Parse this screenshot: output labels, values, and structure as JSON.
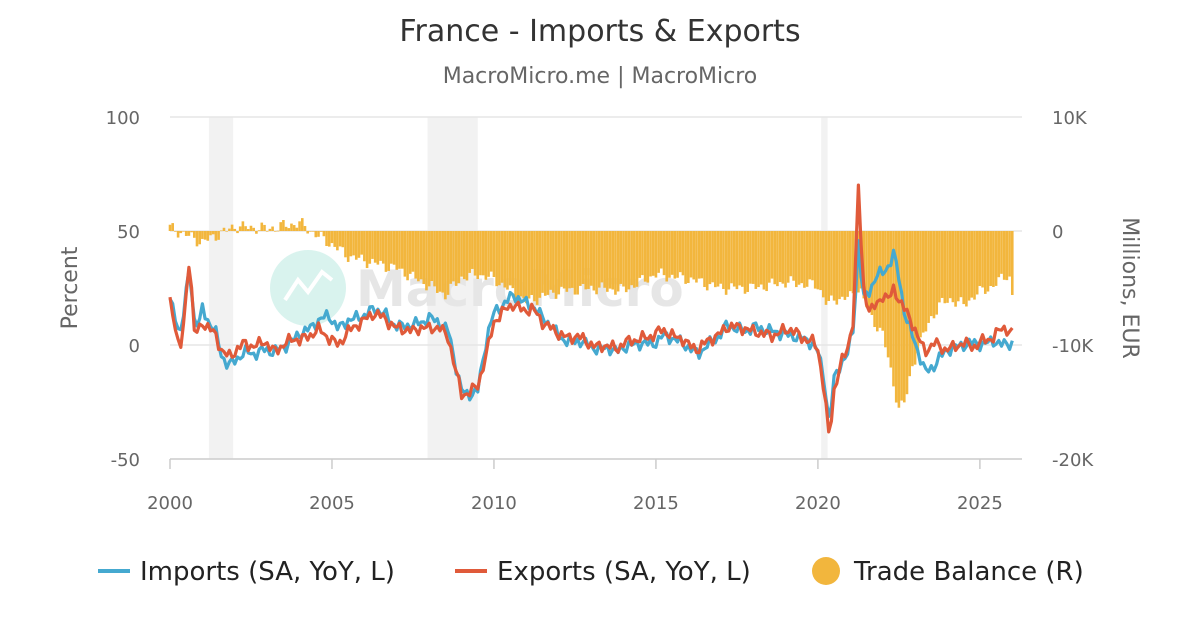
{
  "chart_data": {
    "type": "line",
    "title": "France - Imports & Exports",
    "subtitle": "MacroMicro.me | MacroMicro",
    "watermark": "MacroMicro",
    "y_left": {
      "label": "Percent",
      "min": -50,
      "max": 100,
      "ticks": [
        "100",
        "50",
        "0",
        "-50"
      ],
      "tick_values": [
        100,
        50,
        0,
        -50
      ]
    },
    "y_right": {
      "label": "Millions, EUR",
      "min": -20000,
      "max": 10000,
      "ticks": [
        "10K",
        "0",
        "-10K",
        "-20K"
      ],
      "tick_values": [
        10000,
        0,
        -10000,
        -20000
      ]
    },
    "x_axis": {
      "min": 2000,
      "max": 2026.3,
      "ticks": [
        "2000",
        "2005",
        "2010",
        "2015",
        "2020",
        "2025"
      ],
      "tick_values": [
        2000,
        2005,
        2010,
        2015,
        2020,
        2025
      ]
    },
    "recession_bands": [
      [
        2001.2,
        2001.95
      ],
      [
        2007.95,
        2009.5
      ],
      [
        2020.1,
        2020.3
      ]
    ],
    "grid": true,
    "legend_position": "bottom",
    "series": [
      {
        "name": "Imports (SA, YoY, L)",
        "axis": "left",
        "color": "#45a9d0",
        "points": [
          [
            2000.0,
            19
          ],
          [
            2000.15,
            14
          ],
          [
            2000.3,
            4
          ],
          [
            2000.45,
            16
          ],
          [
            2000.6,
            35
          ],
          [
            2000.75,
            11
          ],
          [
            2000.9,
            9
          ],
          [
            2001.0,
            16
          ],
          [
            2001.2,
            10
          ],
          [
            2001.4,
            6
          ],
          [
            2001.6,
            -5
          ],
          [
            2001.8,
            -9
          ],
          [
            2002.0,
            -7
          ],
          [
            2002.3,
            -3
          ],
          [
            2002.6,
            -4
          ],
          [
            2002.9,
            -2
          ],
          [
            2003.2,
            -3
          ],
          [
            2003.5,
            -1
          ],
          [
            2003.8,
            2
          ],
          [
            2004.0,
            5
          ],
          [
            2004.3,
            7
          ],
          [
            2004.6,
            11
          ],
          [
            2004.9,
            13
          ],
          [
            2005.2,
            7
          ],
          [
            2005.5,
            11
          ],
          [
            2005.8,
            12
          ],
          [
            2006.0,
            13
          ],
          [
            2006.3,
            16
          ],
          [
            2006.6,
            14
          ],
          [
            2006.9,
            9
          ],
          [
            2007.2,
            8
          ],
          [
            2007.5,
            9
          ],
          [
            2007.8,
            10
          ],
          [
            2008.0,
            12
          ],
          [
            2008.3,
            10
          ],
          [
            2008.6,
            6
          ],
          [
            2008.8,
            -8
          ],
          [
            2009.0,
            -20
          ],
          [
            2009.2,
            -22
          ],
          [
            2009.5,
            -20
          ],
          [
            2009.8,
            5
          ],
          [
            2010.0,
            14
          ],
          [
            2010.3,
            18
          ],
          [
            2010.6,
            22
          ],
          [
            2010.9,
            19
          ],
          [
            2011.2,
            17
          ],
          [
            2011.5,
            12
          ],
          [
            2011.8,
            8
          ],
          [
            2012.0,
            4
          ],
          [
            2012.3,
            1
          ],
          [
            2012.6,
            2
          ],
          [
            2012.9,
            0
          ],
          [
            2013.2,
            -2
          ],
          [
            2013.5,
            -1
          ],
          [
            2013.8,
            -3
          ],
          [
            2014.0,
            -1
          ],
          [
            2014.3,
            0
          ],
          [
            2014.6,
            1
          ],
          [
            2014.9,
            0
          ],
          [
            2015.2,
            4
          ],
          [
            2015.5,
            3
          ],
          [
            2015.8,
            1
          ],
          [
            2016.0,
            -1
          ],
          [
            2016.3,
            -4
          ],
          [
            2016.6,
            0
          ],
          [
            2016.9,
            3
          ],
          [
            2017.2,
            9
          ],
          [
            2017.5,
            7
          ],
          [
            2017.8,
            6
          ],
          [
            2018.0,
            8
          ],
          [
            2018.3,
            7
          ],
          [
            2018.6,
            6
          ],
          [
            2018.9,
            5
          ],
          [
            2019.2,
            4
          ],
          [
            2019.5,
            3
          ],
          [
            2019.8,
            1
          ],
          [
            2020.0,
            -3
          ],
          [
            2020.2,
            -15
          ],
          [
            2020.35,
            -35
          ],
          [
            2020.5,
            -15
          ],
          [
            2020.7,
            -8
          ],
          [
            2020.9,
            -5
          ],
          [
            2021.1,
            8
          ],
          [
            2021.25,
            45
          ],
          [
            2021.4,
            20
          ],
          [
            2021.6,
            24
          ],
          [
            2021.8,
            30
          ],
          [
            2022.0,
            32
          ],
          [
            2022.2,
            35
          ],
          [
            2022.35,
            40
          ],
          [
            2022.5,
            30
          ],
          [
            2022.7,
            12
          ],
          [
            2022.9,
            5
          ],
          [
            2023.1,
            -3
          ],
          [
            2023.3,
            -12
          ],
          [
            2023.6,
            -9
          ],
          [
            2023.9,
            -3
          ],
          [
            2024.2,
            -1
          ],
          [
            2024.5,
            0
          ],
          [
            2024.8,
            1
          ],
          [
            2025.1,
            0
          ],
          [
            2025.4,
            2
          ],
          [
            2025.7,
            0
          ],
          [
            2026.0,
            1
          ]
        ]
      },
      {
        "name": "Exports (SA, YoY, L)",
        "axis": "left",
        "color": "#e05a3a",
        "points": [
          [
            2000.0,
            20
          ],
          [
            2000.15,
            10
          ],
          [
            2000.3,
            -5
          ],
          [
            2000.45,
            13
          ],
          [
            2000.6,
            40
          ],
          [
            2000.75,
            5
          ],
          [
            2000.9,
            7
          ],
          [
            2001.0,
            10
          ],
          [
            2001.2,
            7
          ],
          [
            2001.4,
            5
          ],
          [
            2001.6,
            -3
          ],
          [
            2001.8,
            -5
          ],
          [
            2002.0,
            -3
          ],
          [
            2002.3,
            1
          ],
          [
            2002.6,
            -1
          ],
          [
            2002.9,
            2
          ],
          [
            2003.2,
            -3
          ],
          [
            2003.5,
            0
          ],
          [
            2003.8,
            3
          ],
          [
            2004.0,
            2
          ],
          [
            2004.3,
            4
          ],
          [
            2004.6,
            7
          ],
          [
            2004.9,
            3
          ],
          [
            2005.2,
            0
          ],
          [
            2005.5,
            6
          ],
          [
            2005.8,
            9
          ],
          [
            2006.0,
            11
          ],
          [
            2006.3,
            14
          ],
          [
            2006.6,
            12
          ],
          [
            2006.9,
            8
          ],
          [
            2007.2,
            7
          ],
          [
            2007.5,
            6
          ],
          [
            2007.8,
            8
          ],
          [
            2008.0,
            7
          ],
          [
            2008.3,
            8
          ],
          [
            2008.6,
            3
          ],
          [
            2008.8,
            -10
          ],
          [
            2009.0,
            -22
          ],
          [
            2009.2,
            -21
          ],
          [
            2009.5,
            -18
          ],
          [
            2009.8,
            -2
          ],
          [
            2010.0,
            10
          ],
          [
            2010.3,
            15
          ],
          [
            2010.6,
            18
          ],
          [
            2010.9,
            15
          ],
          [
            2011.2,
            16
          ],
          [
            2011.5,
            10
          ],
          [
            2011.8,
            7
          ],
          [
            2012.0,
            5
          ],
          [
            2012.3,
            3
          ],
          [
            2012.6,
            4
          ],
          [
            2012.9,
            1
          ],
          [
            2013.2,
            -1
          ],
          [
            2013.5,
            0
          ],
          [
            2013.8,
            -2
          ],
          [
            2014.0,
            1
          ],
          [
            2014.3,
            2
          ],
          [
            2014.6,
            3
          ],
          [
            2014.9,
            4
          ],
          [
            2015.2,
            7
          ],
          [
            2015.5,
            4
          ],
          [
            2015.8,
            3
          ],
          [
            2016.0,
            0
          ],
          [
            2016.3,
            -2
          ],
          [
            2016.6,
            2
          ],
          [
            2016.9,
            4
          ],
          [
            2017.2,
            8
          ],
          [
            2017.5,
            8
          ],
          [
            2017.8,
            7
          ],
          [
            2018.0,
            6
          ],
          [
            2018.3,
            5
          ],
          [
            2018.6,
            4
          ],
          [
            2018.9,
            6
          ],
          [
            2019.2,
            7
          ],
          [
            2019.5,
            3
          ],
          [
            2019.8,
            2
          ],
          [
            2020.0,
            -2
          ],
          [
            2020.2,
            -20
          ],
          [
            2020.35,
            -42
          ],
          [
            2020.5,
            -20
          ],
          [
            2020.7,
            -8
          ],
          [
            2020.9,
            -3
          ],
          [
            2021.1,
            12
          ],
          [
            2021.25,
            69
          ],
          [
            2021.4,
            25
          ],
          [
            2021.6,
            15
          ],
          [
            2021.8,
            17
          ],
          [
            2022.0,
            22
          ],
          [
            2022.2,
            20
          ],
          [
            2022.35,
            25
          ],
          [
            2022.5,
            20
          ],
          [
            2022.7,
            15
          ],
          [
            2022.9,
            10
          ],
          [
            2023.1,
            3
          ],
          [
            2023.3,
            -3
          ],
          [
            2023.6,
            1
          ],
          [
            2023.9,
            -2
          ],
          [
            2024.2,
            -1
          ],
          [
            2024.5,
            1
          ],
          [
            2024.8,
            -1
          ],
          [
            2025.1,
            2
          ],
          [
            2025.4,
            3
          ],
          [
            2025.7,
            8
          ],
          [
            2026.0,
            5
          ]
        ]
      },
      {
        "name": "Trade Balance (R)",
        "axis": "right",
        "color": "#f2b63d",
        "type": "bar",
        "points": [
          [
            2000.0,
            300
          ],
          [
            2001.0,
            -1000
          ],
          [
            2002.0,
            400
          ],
          [
            2003.0,
            200
          ],
          [
            2004.0,
            700
          ],
          [
            2004.5,
            -300
          ],
          [
            2005.0,
            -1200
          ],
          [
            2005.5,
            -2200
          ],
          [
            2006.0,
            -2600
          ],
          [
            2007.0,
            -3300
          ],
          [
            2008.0,
            -4800
          ],
          [
            2008.5,
            -5600
          ],
          [
            2009.0,
            -4100
          ],
          [
            2009.5,
            -3800
          ],
          [
            2010.0,
            -4200
          ],
          [
            2011.0,
            -6200
          ],
          [
            2012.0,
            -5300
          ],
          [
            2013.0,
            -5000
          ],
          [
            2014.0,
            -5200
          ],
          [
            2015.0,
            -3800
          ],
          [
            2016.0,
            -4200
          ],
          [
            2017.0,
            -5000
          ],
          [
            2018.0,
            -5000
          ],
          [
            2019.0,
            -4500
          ],
          [
            2020.0,
            -4800
          ],
          [
            2020.3,
            -6500
          ],
          [
            2020.5,
            -6000
          ],
          [
            2021.0,
            -5800
          ],
          [
            2021.3,
            -5000
          ],
          [
            2021.6,
            -7400
          ],
          [
            2022.0,
            -9000
          ],
          [
            2022.3,
            -13000
          ],
          [
            2022.5,
            -15500
          ],
          [
            2022.7,
            -15000
          ],
          [
            2022.9,
            -12000
          ],
          [
            2023.2,
            -9500
          ],
          [
            2023.5,
            -7600
          ],
          [
            2023.8,
            -6400
          ],
          [
            2024.1,
            -6000
          ],
          [
            2024.5,
            -6500
          ],
          [
            2024.9,
            -5500
          ],
          [
            2025.3,
            -5000
          ],
          [
            2025.6,
            -4400
          ],
          [
            2025.9,
            -3700
          ],
          [
            2026.0,
            -5700
          ]
        ]
      }
    ]
  }
}
